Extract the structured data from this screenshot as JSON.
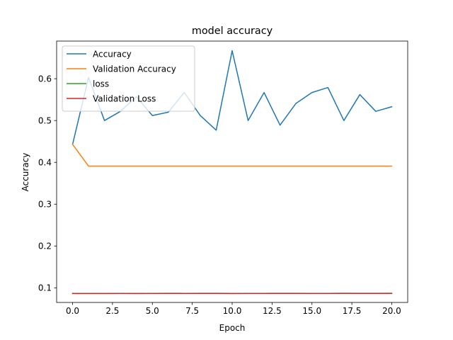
{
  "chart_data": {
    "type": "line",
    "title": "model accuracy",
    "xlabel": "Epoch",
    "ylabel": "Accuracy",
    "xlim": [
      -1.0,
      21.0
    ],
    "ylim": [
      0.065,
      0.69
    ],
    "xticks": [
      0.0,
      2.5,
      5.0,
      7.5,
      10.0,
      12.5,
      15.0,
      17.5,
      20.0
    ],
    "xtick_labels": [
      "0.0",
      "2.5",
      "5.0",
      "7.5",
      "10.0",
      "12.5",
      "15.0",
      "17.5",
      "20.0"
    ],
    "yticks": [
      0.1,
      0.2,
      0.3,
      0.4,
      0.5,
      0.6
    ],
    "ytick_labels": [
      "0.1",
      "0.2",
      "0.3",
      "0.4",
      "0.5",
      "0.6"
    ],
    "grid": false,
    "legend_position": "upper-left",
    "x": [
      0,
      1,
      2,
      3,
      4,
      5,
      6,
      7,
      8,
      9,
      10,
      11,
      12,
      13,
      14,
      15,
      16,
      17,
      18,
      19,
      20
    ],
    "series": [
      {
        "name": "Accuracy",
        "color": "#1f77b4",
        "values": [
          0.443,
          0.603,
          0.5,
          0.522,
          0.557,
          0.512,
          0.52,
          0.567,
          0.512,
          0.477,
          0.667,
          0.5,
          0.567,
          0.489,
          0.541,
          0.567,
          0.579,
          0.5,
          0.562,
          0.522,
          0.533
        ]
      },
      {
        "name": "Validation Accuracy",
        "color": "#ff7f0e",
        "values": [
          0.443,
          0.391,
          0.391,
          0.391,
          0.391,
          0.391,
          0.391,
          0.391,
          0.391,
          0.391,
          0.391,
          0.391,
          0.391,
          0.391,
          0.391,
          0.391,
          0.391,
          0.391,
          0.391,
          0.391,
          0.391
        ]
      },
      {
        "name": "loss",
        "color": "#2ca02c",
        "values": [
          0.0865,
          0.0866,
          0.0866,
          0.0867,
          0.0866,
          0.0867,
          0.0868,
          0.0867,
          0.0868,
          0.0869,
          0.0866,
          0.0867,
          0.0867,
          0.0868,
          0.0868,
          0.0867,
          0.0867,
          0.0869,
          0.0868,
          0.0869,
          0.0869
        ]
      },
      {
        "name": "Validation Loss",
        "color": "#d62728",
        "values": [
          0.0863,
          0.0864,
          0.0864,
          0.0865,
          0.0864,
          0.0865,
          0.0866,
          0.0865,
          0.0866,
          0.0867,
          0.0863,
          0.0866,
          0.0865,
          0.0867,
          0.0866,
          0.0865,
          0.0865,
          0.0868,
          0.0866,
          0.0867,
          0.0868
        ]
      }
    ]
  }
}
